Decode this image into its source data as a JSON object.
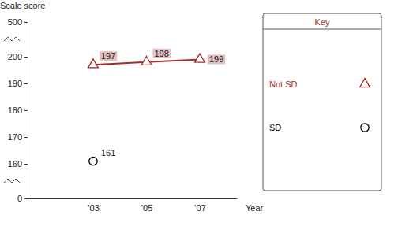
{
  "chart_data": {
    "type": "line",
    "y_label": "Scale score",
    "x_label": "Year",
    "legend_title": "Key",
    "categories": [
      "’03",
      "’05",
      "’07"
    ],
    "series": [
      {
        "name": "Not SD",
        "color": "#a52a2a",
        "values": [
          197,
          198,
          199
        ],
        "marker": "triangle",
        "line_style": "solid"
      },
      {
        "name": "SD",
        "color": "#000000",
        "values": [
          161,
          null,
          null
        ],
        "marker": "circle",
        "line_style": "solid"
      }
    ],
    "ylim": [
      0,
      500
    ],
    "yticks": [
      0,
      160,
      170,
      180,
      190,
      200,
      500
    ],
    "grid": false,
    "legend": "right",
    "data_labels": true
  }
}
